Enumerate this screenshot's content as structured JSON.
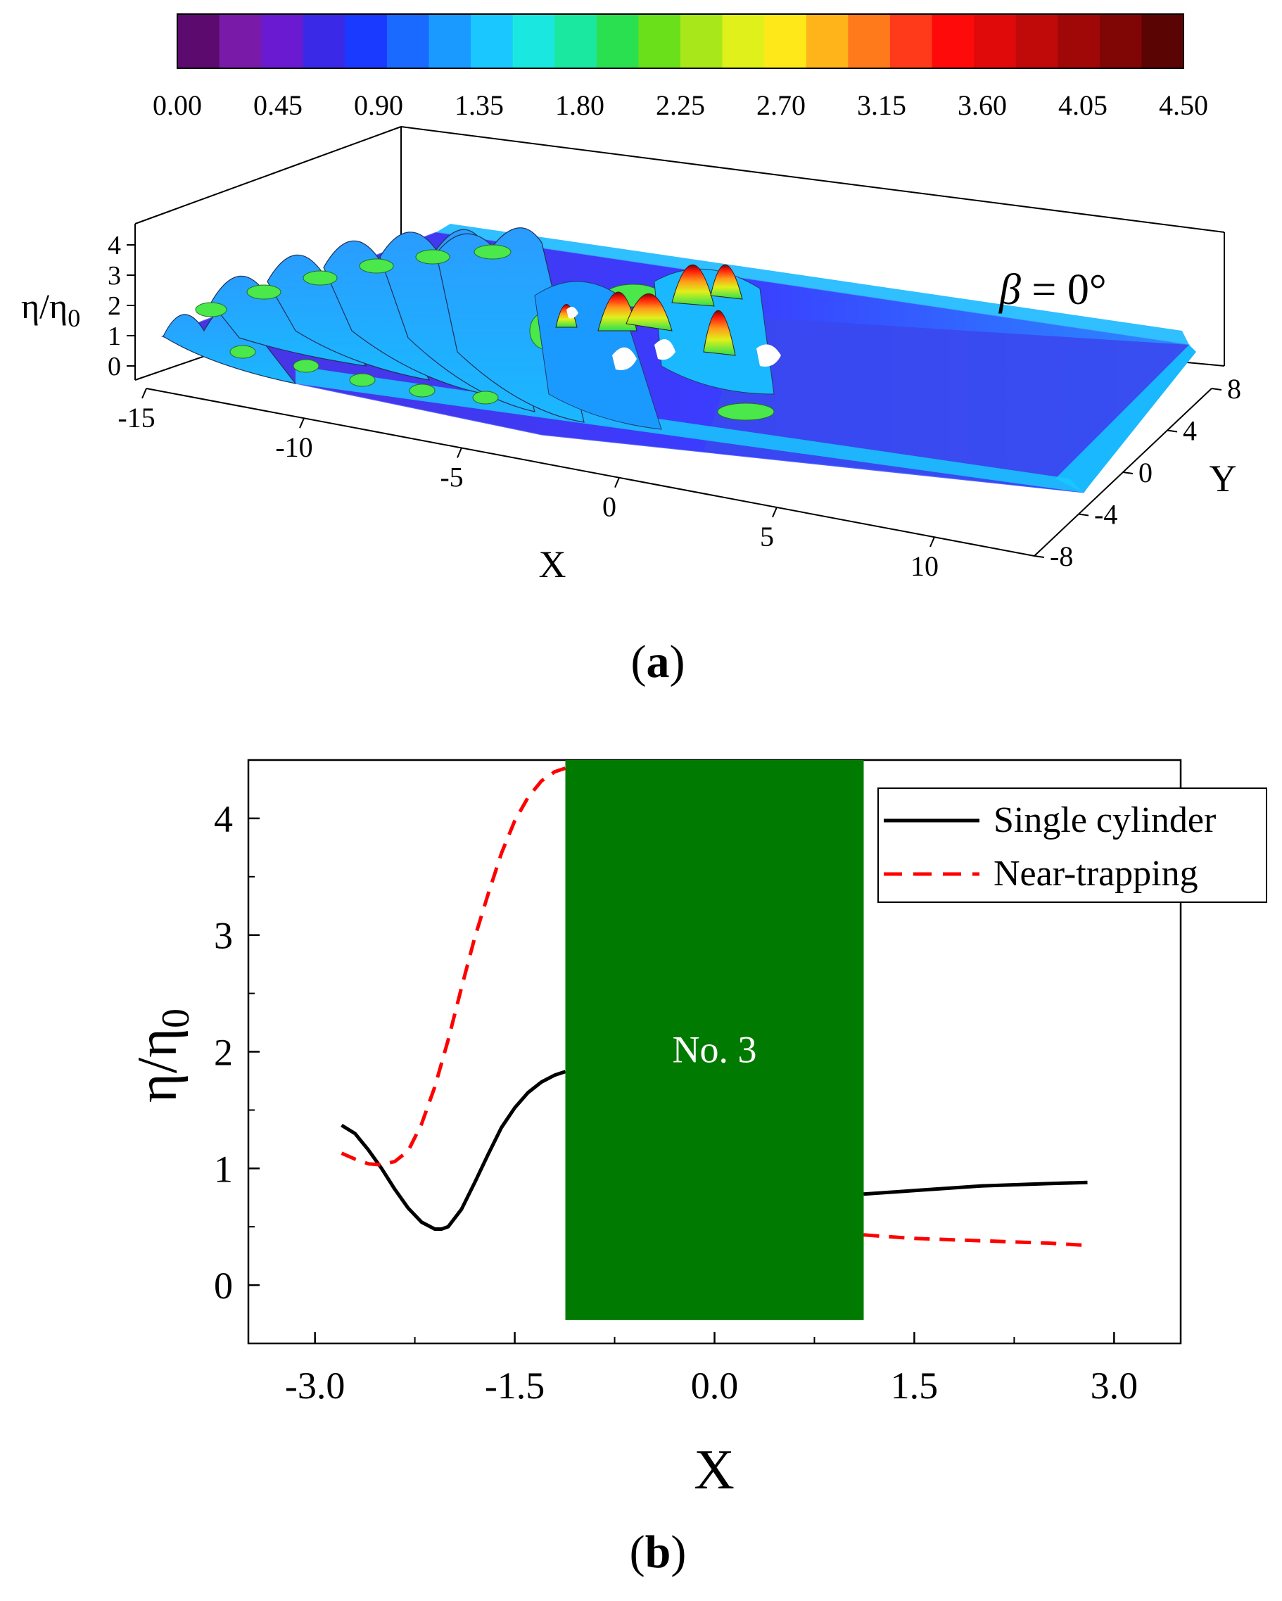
{
  "colorbar": {
    "ticks": [
      "0.00",
      "0.45",
      "0.90",
      "1.35",
      "1.80",
      "2.25",
      "2.70",
      "3.15",
      "3.60",
      "4.05",
      "4.50"
    ],
    "min": 0.0,
    "max": 4.5,
    "colors": [
      "#5c0a6e",
      "#7a1aa8",
      "#6a1ad0",
      "#3a2ae8",
      "#1a3aff",
      "#1a6aff",
      "#1a9aff",
      "#1ac8ff",
      "#1ae8e0",
      "#1ae8a0",
      "#2ae050",
      "#6ae01a",
      "#a8e81a",
      "#e0f01a",
      "#ffe81a",
      "#ffb41a",
      "#ff7a1a",
      "#ff3a1a",
      "#ff0a0a",
      "#e00a0a",
      "#c00a0a",
      "#a00808",
      "#800606",
      "#5a0404"
    ]
  },
  "panel_a": {
    "caption_open": "(",
    "caption_label": "a",
    "caption_close": ")",
    "annotation_beta": "β",
    "annotation_rest": " = 0°",
    "z_label_main": "η/η",
    "z_label_sub": "0",
    "z_ticks": [
      "0",
      "1",
      "2",
      "3",
      "4"
    ],
    "x_label": "X",
    "x_ticks": [
      "-15",
      "-10",
      "-5",
      "0",
      "5",
      "10"
    ],
    "y_label": "Y",
    "y_ticks": [
      "8",
      "4",
      "0",
      "-4",
      "-8"
    ]
  },
  "chart_data": {
    "type": "line",
    "title": "",
    "xlabel": "X",
    "ylabel": "η/η0",
    "xlim": [
      -3.5,
      3.5
    ],
    "ylim": [
      -0.5,
      4.5
    ],
    "x_ticks": [
      "-3.0",
      "-1.5",
      "0.0",
      "1.5",
      "3.0"
    ],
    "y_ticks": [
      "0",
      "1",
      "2",
      "3",
      "4"
    ],
    "legend_position": "top-right",
    "cylinder": {
      "label": "No. 3",
      "x_range": [
        -1.12,
        1.12
      ],
      "color": "#007a00"
    },
    "series": [
      {
        "name": "Single cylinder",
        "style": "solid",
        "color": "#000000",
        "x": [
          -2.8,
          -2.7,
          -2.6,
          -2.5,
          -2.4,
          -2.3,
          -2.2,
          -2.1,
          -2.05,
          -2.0,
          -1.9,
          -1.8,
          -1.7,
          -1.6,
          -1.5,
          -1.4,
          -1.3,
          -1.2,
          -1.12,
          1.12,
          1.5,
          2.0,
          2.5,
          2.8
        ],
        "y": [
          1.37,
          1.3,
          1.16,
          1.0,
          0.82,
          0.66,
          0.54,
          0.48,
          0.48,
          0.5,
          0.65,
          0.88,
          1.12,
          1.35,
          1.52,
          1.65,
          1.74,
          1.8,
          1.83,
          0.78,
          0.81,
          0.85,
          0.87,
          0.88
        ]
      },
      {
        "name": "Near-trapping",
        "style": "dashed",
        "color": "#ff0000",
        "x": [
          -2.8,
          -2.7,
          -2.6,
          -2.5,
          -2.4,
          -2.3,
          -2.2,
          -2.1,
          -2.0,
          -1.9,
          -1.8,
          -1.7,
          -1.6,
          -1.5,
          -1.4,
          -1.3,
          -1.2,
          -1.12,
          1.12,
          1.5,
          2.0,
          2.5,
          2.8
        ],
        "y": [
          1.13,
          1.08,
          1.04,
          1.03,
          1.06,
          1.15,
          1.38,
          1.7,
          2.1,
          2.55,
          2.98,
          3.35,
          3.7,
          3.98,
          4.18,
          4.32,
          4.4,
          4.43,
          0.43,
          0.4,
          0.38,
          0.36,
          0.34
        ]
      }
    ]
  },
  "panel_b": {
    "caption_open": "(",
    "caption_label": "b",
    "caption_close": ")",
    "ylabel_main": "η/η",
    "ylabel_sub": "0"
  }
}
